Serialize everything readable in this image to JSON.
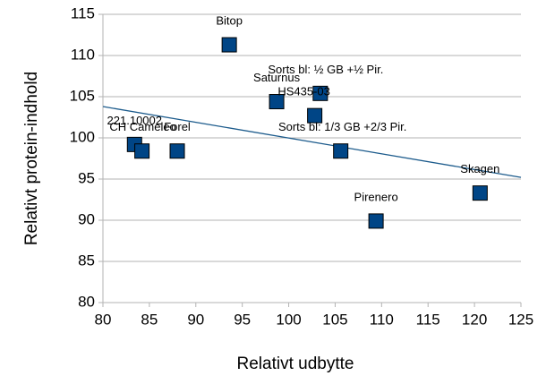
{
  "chart_data": {
    "type": "scatter",
    "xlabel": "Relativt udbytte",
    "ylabel": "Relativt protein-indhold",
    "series": [
      {
        "color": "#004586",
        "labels": [
          "Bitop",
          "Saturnus",
          "Sorts bl: ½ GB +½ Pir.",
          "HS435-03",
          "Sorts bl: 1/3 GB +2/3 Pir.",
          "221.10002",
          "CH Cameleo",
          "Forel",
          "Pirenero",
          "Skagen"
        ],
        "x": [
          93.6,
          98.7,
          103.4,
          102.8,
          105.6,
          83.4,
          84.2,
          88.0,
          109.4,
          120.6
        ],
        "values": [
          111.3,
          104.4,
          105.4,
          102.7,
          98.4,
          99.2,
          98.4,
          98.4,
          89.9,
          93.3
        ]
      }
    ],
    "trendline": {
      "color": "#1c5b8c",
      "x": [
        80,
        125
      ],
      "values": [
        103.8,
        95.2
      ]
    },
    "xlim": [
      80,
      125
    ],
    "xticks": [
      80,
      85,
      90,
      95,
      100,
      105,
      110,
      115,
      120,
      125
    ],
    "ylim": [
      80,
      115
    ],
    "yticks": [
      80,
      85,
      90,
      95,
      100,
      105,
      110,
      115
    ],
    "grid": true
  }
}
